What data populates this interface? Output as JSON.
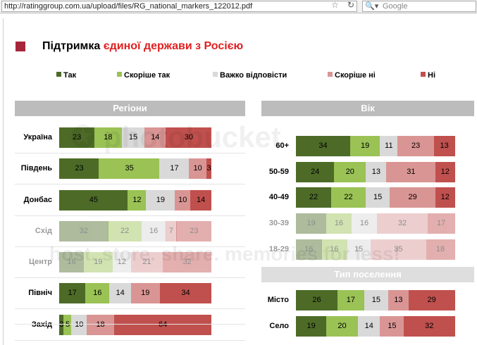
{
  "browser": {
    "url": "http://ratinggroup.com.ua/upload/files/RG_national_markers_122012.pdf",
    "search_placeholder": "Google",
    "search_icon": "magnifier-icon",
    "reload_icon": "reload-icon",
    "bookmark_icon": "star-icon"
  },
  "title": {
    "part1": "Підтримка ",
    "part2": "єдиної держави з Росією"
  },
  "colors": {
    "so": "#4d6b27",
    "rather_yes": "#9ac255",
    "hard": "#d9d9d9",
    "rather_no": "#d99594",
    "no": "#c0504d",
    "title_marker": "#a6253a"
  },
  "legend": [
    "Так",
    "Скоріше так",
    "Важко відповісти",
    "Скоріше ні",
    "Ні"
  ],
  "headers": {
    "regions": "Регіони",
    "age": "Вік",
    "settlement": "Тип поселення"
  },
  "chart_data": [
    {
      "type": "bar",
      "title": "Регіони",
      "orientation": "horizontal-stacked-100",
      "categories": [
        "Україна",
        "Південь",
        "Донбас",
        "Схід",
        "Центр",
        "Північ",
        "Захід"
      ],
      "series": [
        {
          "name": "Так",
          "values": [
            23,
            23,
            45,
            32,
            16,
            17,
            3
          ]
        },
        {
          "name": "Скоріше так",
          "values": [
            18,
            35,
            12,
            22,
            19,
            16,
            5
          ]
        },
        {
          "name": "Важко відповісти",
          "values": [
            15,
            17,
            19,
            16,
            12,
            14,
            10
          ]
        },
        {
          "name": "Скоріше ні",
          "values": [
            14,
            10,
            10,
            7,
            21,
            19,
            18
          ]
        },
        {
          "name": "Ні",
          "values": [
            30,
            3,
            14,
            23,
            32,
            34,
            64
          ]
        }
      ]
    },
    {
      "type": "bar",
      "title": "Вік",
      "orientation": "horizontal-stacked-100",
      "categories": [
        "60+",
        "50-59",
        "40-49",
        "30-39",
        "18-29"
      ],
      "series": [
        {
          "name": "Так",
          "values": [
            34,
            24,
            22,
            19,
            16
          ]
        },
        {
          "name": "Скоріше так",
          "values": [
            19,
            20,
            22,
            16,
            16
          ]
        },
        {
          "name": "Важко відповісти",
          "values": [
            11,
            13,
            15,
            16,
            15
          ]
        },
        {
          "name": "Скоріше ні",
          "values": [
            23,
            31,
            29,
            32,
            35
          ]
        },
        {
          "name": "Ні",
          "values": [
            13,
            12,
            12,
            17,
            18
          ]
        }
      ]
    },
    {
      "type": "bar",
      "title": "Тип поселення",
      "orientation": "horizontal-stacked-100",
      "categories": [
        "Місто",
        "Село"
      ],
      "series": [
        {
          "name": "Так",
          "values": [
            26,
            19
          ]
        },
        {
          "name": "Скоріше так",
          "values": [
            17,
            20
          ]
        },
        {
          "name": "Важко відповісти",
          "values": [
            15,
            14
          ]
        },
        {
          "name": "Скоріше ні",
          "values": [
            13,
            15
          ]
        },
        {
          "name": "Ні",
          "values": [
            29,
            32
          ]
        }
      ]
    }
  ]
}
